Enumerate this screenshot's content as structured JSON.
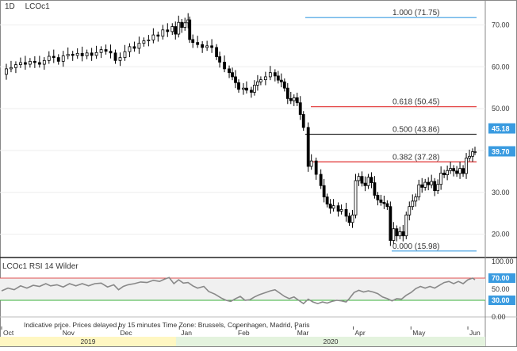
{
  "header": {
    "timeframe": "1D",
    "symbol": "LCOc1"
  },
  "rsi_panel": {
    "label": "LCOc1  RSI 14 Wilder"
  },
  "footer": {
    "note": "Indicative price. Prices delayed by 15 minutes   Time Zone: Brussels, Copenhagen, Madrid, Paris",
    "years": [
      "2019",
      "2020"
    ],
    "months": [
      "Oct",
      "Nov",
      "Dec",
      "Jan",
      "Feb",
      "Mar",
      "Apr",
      "May",
      "Jun"
    ]
  },
  "colors": {
    "candle": "#000000",
    "fib_blue": "#3a9be0",
    "fib_red": "#e03030",
    "fib_dark": "#333333",
    "rsi_line": "#888888",
    "rsi_70": "#e05050",
    "rsi_30": "#3ab03a",
    "year_2019": "#fff7c2",
    "year_2020": "#e4f3de"
  },
  "chart_data": [
    {
      "type": "candlestick",
      "title": "",
      "ylim": [
        15,
        75
      ],
      "yticks": [
        "20.00",
        "30.00",
        "40.00",
        "50.00",
        "60.00",
        "70.00"
      ],
      "price_badges": [
        "45.18",
        "39.70"
      ],
      "fibonacci_levels": [
        {
          "label": "1.000 (71.75)",
          "value": 71.75,
          "color": "#3a9be0"
        },
        {
          "label": "0.618 (50.45)",
          "value": 50.45,
          "color": "#e03030"
        },
        {
          "label": "0.500 (43.86)",
          "value": 43.86,
          "color": "#333333"
        },
        {
          "label": "0.382 (37.28)",
          "value": 37.28,
          "color": "#e03030"
        },
        {
          "label": "0.000 (15.98)",
          "value": 15.98,
          "color": "#3a9be0"
        }
      ],
      "close_series": [
        [
          0,
          58.2
        ],
        [
          6,
          59.5
        ],
        [
          12,
          59.8
        ],
        [
          18,
          60.5
        ],
        [
          24,
          61
        ],
        [
          30,
          60.6
        ],
        [
          36,
          61.3
        ],
        [
          42,
          61
        ],
        [
          48,
          60.6
        ],
        [
          54,
          61.5
        ],
        [
          60,
          62.5
        ],
        [
          66,
          62.2
        ],
        [
          72,
          61.3
        ],
        [
          78,
          62.6
        ],
        [
          84,
          63
        ],
        [
          90,
          62.7
        ],
        [
          96,
          63.2
        ],
        [
          102,
          62.6
        ],
        [
          108,
          63.3
        ],
        [
          114,
          62.7
        ],
        [
          120,
          63.4
        ],
        [
          126,
          64.1
        ],
        [
          132,
          63.7
        ],
        [
          138,
          63.3
        ],
        [
          144,
          61.5
        ],
        [
          150,
          62.2
        ],
        [
          156,
          63.6
        ],
        [
          162,
          64.8
        ],
        [
          168,
          64.4
        ],
        [
          174,
          65.6
        ],
        [
          180,
          66.2
        ],
        [
          186,
          66.4
        ],
        [
          192,
          67.6
        ],
        [
          198,
          67.3
        ],
        [
          204,
          68.8
        ],
        [
          210,
          68.4
        ],
        [
          216,
          69.6
        ],
        [
          220,
          67.8
        ],
        [
          224,
          70.6
        ],
        [
          228,
          69.4
        ],
        [
          232,
          70.5
        ],
        [
          236,
          71.2
        ],
        [
          238,
          66.5
        ],
        [
          242,
          65.8
        ],
        [
          248,
          65.3
        ],
        [
          254,
          64.6
        ],
        [
          260,
          65
        ],
        [
          266,
          64.6
        ],
        [
          272,
          62.4
        ],
        [
          276,
          61.1
        ],
        [
          282,
          59.5
        ],
        [
          288,
          58.6
        ],
        [
          292,
          57.6
        ],
        [
          296,
          56.2
        ],
        [
          300,
          54.6
        ],
        [
          306,
          54.9
        ],
        [
          310,
          54.4
        ],
        [
          316,
          53.9
        ],
        [
          320,
          55.6
        ],
        [
          324,
          56.4
        ],
        [
          328,
          56.9
        ],
        [
          334,
          57.6
        ],
        [
          340,
          58.6
        ],
        [
          346,
          57.8
        ],
        [
          350,
          56.8
        ],
        [
          354,
          56.4
        ],
        [
          358,
          54.9
        ],
        [
          362,
          52.4
        ],
        [
          366,
          51.9
        ],
        [
          370,
          52.6
        ],
        [
          374,
          51.4
        ],
        [
          378,
          48.6
        ],
        [
          382,
          45.5
        ],
        [
          388,
          36.2
        ],
        [
          392,
          37.5
        ],
        [
          398,
          34.3
        ],
        [
          404,
          31.6
        ],
        [
          408,
          28.9
        ],
        [
          412,
          27.2
        ],
        [
          416,
          26.2
        ],
        [
          420,
          26.8
        ],
        [
          426,
          25.5
        ],
        [
          430,
          25.9
        ],
        [
          436,
          24.3
        ],
        [
          440,
          22.8
        ],
        [
          444,
          24.6
        ],
        [
          448,
          32.8
        ],
        [
          452,
          33.8
        ],
        [
          456,
          32.2
        ],
        [
          460,
          31.6
        ],
        [
          464,
          33.6
        ],
        [
          468,
          32.3
        ],
        [
          472,
          29.3
        ],
        [
          476,
          28.2
        ],
        [
          480,
          27.6
        ],
        [
          484,
          27.3
        ],
        [
          488,
          26.6
        ],
        [
          492,
          18.5
        ],
        [
          496,
          21.3
        ],
        [
          500,
          19.6
        ],
        [
          504,
          20.6
        ],
        [
          508,
          19.6
        ],
        [
          512,
          24.6
        ],
        [
          516,
          26.6
        ],
        [
          520,
          27.9
        ],
        [
          524,
          28.9
        ],
        [
          528,
          31.8
        ],
        [
          532,
          31.2
        ],
        [
          536,
          32.4
        ],
        [
          540,
          31.8
        ],
        [
          544,
          32.6
        ],
        [
          548,
          30.4
        ],
        [
          552,
          31.9
        ],
        [
          556,
          34.6
        ],
        [
          560,
          34.2
        ],
        [
          564,
          35.2
        ],
        [
          568,
          35.7
        ],
        [
          572,
          35.1
        ],
        [
          576,
          34.5
        ],
        [
          580,
          35.7
        ],
        [
          584,
          34.5
        ],
        [
          588,
          38.2
        ],
        [
          592,
          38.6
        ],
        [
          596,
          39.7
        ],
        [
          599,
          39.7
        ]
      ]
    },
    {
      "type": "line",
      "title": "",
      "ylim": [
        0,
        100
      ],
      "yticks": [
        "0.00",
        "30.00",
        "50.00",
        "70.00",
        "100.00"
      ],
      "reference_lines": [
        70,
        30
      ],
      "rsi_series": [
        [
          0,
          47
        ],
        [
          8,
          52
        ],
        [
          16,
          49
        ],
        [
          24,
          56
        ],
        [
          32,
          52
        ],
        [
          40,
          57
        ],
        [
          48,
          55
        ],
        [
          56,
          60
        ],
        [
          62,
          56
        ],
        [
          70,
          58
        ],
        [
          78,
          54
        ],
        [
          86,
          60
        ],
        [
          94,
          56
        ],
        [
          102,
          60
        ],
        [
          110,
          56
        ],
        [
          118,
          60
        ],
        [
          126,
          61
        ],
        [
          134,
          54
        ],
        [
          142,
          58
        ],
        [
          148,
          49
        ],
        [
          154,
          55
        ],
        [
          160,
          58
        ],
        [
          168,
          60
        ],
        [
          176,
          63
        ],
        [
          184,
          62
        ],
        [
          192,
          66
        ],
        [
          200,
          64
        ],
        [
          206,
          68
        ],
        [
          212,
          71
        ],
        [
          218,
          60
        ],
        [
          224,
          67
        ],
        [
          230,
          61
        ],
        [
          236,
          62
        ],
        [
          242,
          56
        ],
        [
          248,
          52
        ],
        [
          256,
          55
        ],
        [
          262,
          46
        ],
        [
          270,
          41
        ],
        [
          278,
          34
        ],
        [
          284,
          30
        ],
        [
          290,
          28
        ],
        [
          296,
          33
        ],
        [
          302,
          37
        ],
        [
          308,
          30
        ],
        [
          314,
          31
        ],
        [
          320,
          36
        ],
        [
          326,
          40
        ],
        [
          334,
          44
        ],
        [
          340,
          47
        ],
        [
          346,
          49
        ],
        [
          352,
          43
        ],
        [
          358,
          37
        ],
        [
          364,
          33
        ],
        [
          370,
          36
        ],
        [
          376,
          30
        ],
        [
          382,
          24
        ],
        [
          388,
          32
        ],
        [
          394,
          27
        ],
        [
          400,
          24
        ],
        [
          406,
          27
        ],
        [
          412,
          25
        ],
        [
          418,
          28
        ],
        [
          424,
          30
        ],
        [
          430,
          29
        ],
        [
          436,
          27
        ],
        [
          440,
          33
        ],
        [
          446,
          44
        ],
        [
          452,
          48
        ],
        [
          458,
          45
        ],
        [
          464,
          47
        ],
        [
          470,
          45
        ],
        [
          476,
          42
        ],
        [
          482,
          36
        ],
        [
          488,
          33
        ],
        [
          494,
          29
        ],
        [
          500,
          33
        ],
        [
          506,
          32
        ],
        [
          512,
          39
        ],
        [
          518,
          44
        ],
        [
          524,
          51
        ],
        [
          530,
          55
        ],
        [
          536,
          52
        ],
        [
          542,
          55
        ],
        [
          548,
          52
        ],
        [
          554,
          57
        ],
        [
          560,
          62
        ],
        [
          566,
          64
        ],
        [
          572,
          60
        ],
        [
          578,
          64
        ],
        [
          584,
          60
        ],
        [
          590,
          67
        ],
        [
          596,
          70
        ],
        [
          599,
          67
        ]
      ]
    }
  ]
}
